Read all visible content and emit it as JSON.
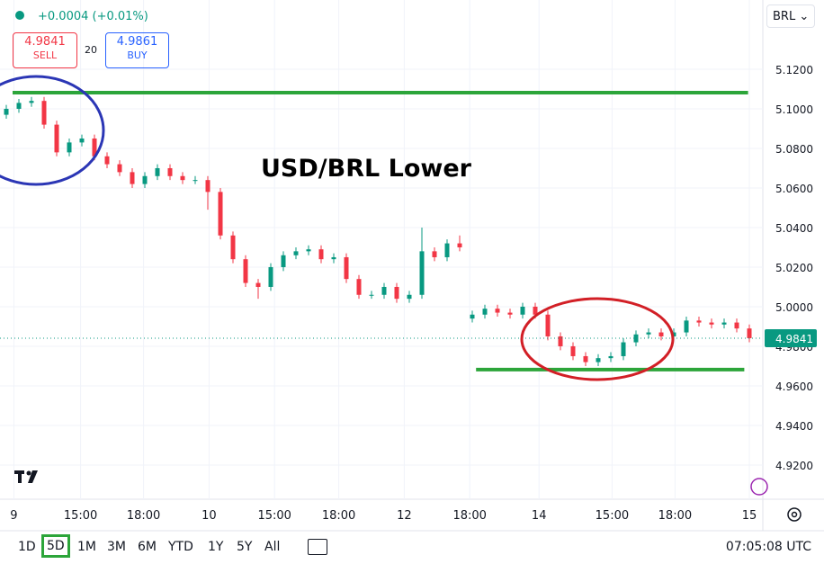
{
  "ui": {
    "change": "+0.0004 (+0.01%)",
    "sell_price": "4.9841",
    "sell_label": "SELL",
    "spread": "20",
    "buy_price": "4.9861",
    "buy_label": "BUY",
    "currency": "BRL",
    "ranges": [
      "1D",
      "5D",
      "1M",
      "3M",
      "6M",
      "YTD",
      "1Y",
      "5Y",
      "All"
    ],
    "active_range": 1,
    "clock": "07:05:08 UTC"
  },
  "chart_data": {
    "type": "candlestick",
    "annotation": "USD/BRL Lower",
    "up_color": "#089981",
    "down_color": "#f23645",
    "open": [
      5.097,
      5.1,
      5.103,
      5.104,
      5.092,
      5.078,
      5.083,
      5.085,
      5.076,
      5.072,
      5.068,
      5.062,
      5.066,
      5.07,
      5.066,
      5.064,
      5.064,
      5.058,
      5.036,
      5.024,
      5.012,
      5.01,
      5.02,
      5.026,
      5.028,
      5.029,
      5.024,
      5.025,
      5.014,
      5.006,
      5.006,
      5.01,
      5.004,
      5.006,
      5.028,
      5.025,
      5.032,
      4.994,
      4.996,
      4.999,
      4.997,
      4.996,
      5.0,
      4.996,
      4.985,
      4.98,
      4.975,
      4.972,
      4.974,
      4.975,
      4.982,
      4.986,
      4.987,
      4.985,
      4.987,
      4.993,
      4.992,
      4.991,
      4.992,
      4.989
    ],
    "high": [
      5.102,
      5.105,
      5.106,
      5.106,
      5.094,
      5.085,
      5.087,
      5.087,
      5.078,
      5.074,
      5.07,
      5.068,
      5.072,
      5.072,
      5.068,
      5.066,
      5.066,
      5.06,
      5.038,
      5.026,
      5.014,
      5.022,
      5.028,
      5.03,
      5.031,
      5.031,
      5.027,
      5.027,
      5.016,
      5.008,
      5.012,
      5.012,
      5.008,
      5.04,
      5.03,
      5.034,
      5.036,
      4.998,
      5.001,
      5.001,
      4.999,
      5.002,
      5.002,
      4.998,
      4.987,
      4.982,
      4.977,
      4.976,
      4.977,
      4.984,
      4.988,
      4.989,
      4.989,
      4.989,
      4.995,
      4.995,
      4.994,
      4.994,
      4.994,
      4.991
    ],
    "low": [
      5.095,
      5.098,
      5.101,
      5.09,
      5.076,
      5.076,
      5.081,
      5.074,
      5.07,
      5.066,
      5.06,
      5.06,
      5.064,
      5.064,
      5.062,
      5.062,
      5.049,
      5.034,
      5.022,
      5.01,
      5.004,
      5.008,
      5.018,
      5.024,
      5.026,
      5.022,
      5.022,
      5.012,
      5.004,
      5.004,
      5.004,
      5.002,
      5.002,
      5.004,
      5.023,
      5.023,
      5.028,
      4.992,
      4.994,
      4.995,
      4.994,
      4.994,
      4.994,
      4.983,
      4.978,
      4.973,
      4.97,
      4.97,
      4.972,
      4.973,
      4.98,
      4.984,
      4.983,
      4.983,
      4.985,
      4.99,
      4.989,
      4.989,
      4.987,
      4.982
    ],
    "close": [
      5.1,
      5.103,
      5.104,
      5.092,
      5.078,
      5.083,
      5.085,
      5.076,
      5.072,
      5.068,
      5.062,
      5.066,
      5.07,
      5.066,
      5.064,
      5.064,
      5.058,
      5.036,
      5.024,
      5.012,
      5.01,
      5.02,
      5.026,
      5.028,
      5.029,
      5.024,
      5.025,
      5.014,
      5.006,
      5.006,
      5.01,
      5.004,
      5.006,
      5.028,
      5.025,
      5.032,
      5.03,
      4.996,
      4.999,
      4.997,
      4.996,
      5.0,
      4.996,
      4.985,
      4.98,
      4.975,
      4.972,
      4.974,
      4.975,
      4.982,
      4.986,
      4.987,
      4.985,
      4.987,
      4.993,
      4.992,
      4.991,
      4.992,
      4.989,
      4.9841
    ],
    "last_price": {
      "value": 4.9841,
      "label": "4.9841"
    },
    "levels": [
      {
        "value": 5.1082,
        "x_range": [
          1,
          59.4
        ],
        "color": "#2ca53a"
      },
      {
        "value": 4.9682,
        "x_range": [
          37.8,
          59.1
        ],
        "color": "#2ca53a"
      }
    ],
    "xlim": [
      0,
      60
    ],
    "xticks": [
      {
        "value": 1.1,
        "label": "9"
      },
      {
        "value": 6.4,
        "label": "15:00"
      },
      {
        "value": 11.4,
        "label": "18:00"
      },
      {
        "value": 16.6,
        "label": "10"
      },
      {
        "value": 21.8,
        "label": "15:00"
      },
      {
        "value": 26.9,
        "label": "18:00"
      },
      {
        "value": 32.1,
        "label": "12"
      },
      {
        "value": 37.3,
        "label": "18:00"
      },
      {
        "value": 42.8,
        "label": "14"
      },
      {
        "value": 48.6,
        "label": "15:00"
      },
      {
        "value": 53.6,
        "label": "18:00"
      },
      {
        "value": 59.5,
        "label": "15"
      }
    ],
    "ylim": [
      4.9027,
      5.155
    ],
    "yticks": [
      {
        "value": 5.12,
        "label": "5.1200"
      },
      {
        "value": 5.1,
        "label": "5.1000"
      },
      {
        "value": 5.08,
        "label": "5.0800"
      },
      {
        "value": 5.06,
        "label": "5.0600"
      },
      {
        "value": 5.04,
        "label": "5.0400"
      },
      {
        "value": 5.02,
        "label": "5.0200"
      },
      {
        "value": 5.0,
        "label": "5.0000"
      },
      {
        "value": 4.98,
        "label": "4.9800"
      },
      {
        "value": 4.96,
        "label": "4.9600"
      },
      {
        "value": 4.94,
        "label": "4.9400"
      },
      {
        "value": 4.92,
        "label": "4.9200"
      }
    ],
    "grid": true
  }
}
